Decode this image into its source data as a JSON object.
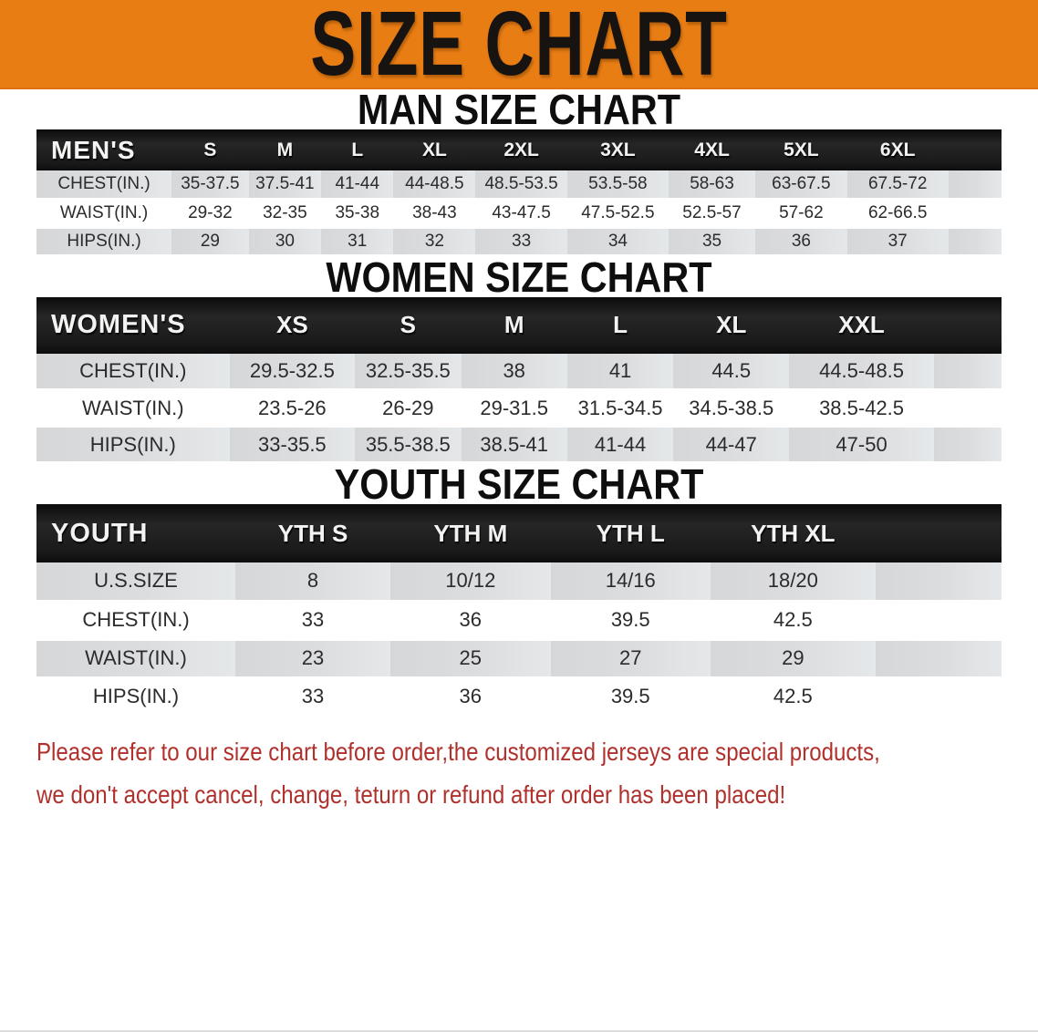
{
  "banner": {
    "title": "SIZE CHART"
  },
  "colors": {
    "banner_bg": "#e87d14",
    "header_bar": "#1a1a1a",
    "row_shade": "#dcddde",
    "disclaimer_red": "#b0302c"
  },
  "sections": [
    {
      "heading": "MAN SIZE CHART",
      "group_label": "MEN'S",
      "sizes": [
        "S",
        "M",
        "L",
        "XL",
        "2XL",
        "3XL",
        "4XL",
        "5XL",
        "6XL"
      ],
      "rows": [
        {
          "label": "CHEST(IN.)",
          "values": [
            "35-37.5",
            "37.5-41",
            "41-44",
            "44-48.5",
            "48.5-53.5",
            "53.5-58",
            "58-63",
            "63-67.5",
            "67.5-72"
          ]
        },
        {
          "label": "WAIST(IN.)",
          "values": [
            "29-32",
            "32-35",
            "35-38",
            "38-43",
            "43-47.5",
            "47.5-52.5",
            "52.5-57",
            "57-62",
            "62-66.5"
          ]
        },
        {
          "label": "HIPS(IN.)",
          "values": [
            "29",
            "30",
            "31",
            "32",
            "33",
            "34",
            "35",
            "36",
            "37"
          ]
        }
      ]
    },
    {
      "heading": "WOMEN SIZE CHART",
      "group_label": "WOMEN'S",
      "sizes": [
        "XS",
        "S",
        "M",
        "L",
        "XL",
        "XXL"
      ],
      "rows": [
        {
          "label": "CHEST(IN.)",
          "values": [
            "29.5-32.5",
            "32.5-35.5",
            "38",
            "41",
            "44.5",
            "44.5-48.5"
          ]
        },
        {
          "label": "WAIST(IN.)",
          "values": [
            "23.5-26",
            "26-29",
            "29-31.5",
            "31.5-34.5",
            "34.5-38.5",
            "38.5-42.5"
          ]
        },
        {
          "label": "HIPS(IN.)",
          "values": [
            "33-35.5",
            "35.5-38.5",
            "38.5-41",
            "41-44",
            "44-47",
            "47-50"
          ]
        }
      ]
    },
    {
      "heading": "YOUTH SIZE CHART",
      "group_label": "YOUTH",
      "sizes": [
        "YTH S",
        "YTH M",
        "YTH L",
        "YTH XL"
      ],
      "rows": [
        {
          "label": "U.S.SIZE",
          "values": [
            "8",
            "10/12",
            "14/16",
            "18/20"
          ]
        },
        {
          "label": "CHEST(IN.)",
          "values": [
            "33",
            "36",
            "39.5",
            "42.5"
          ]
        },
        {
          "label": "WAIST(IN.)",
          "values": [
            "23",
            "25",
            "27",
            "29"
          ]
        },
        {
          "label": "HIPS(IN.)",
          "values": [
            "33",
            "36",
            "39.5",
            "42.5"
          ]
        }
      ]
    }
  ],
  "disclaimer": {
    "line1": "Please refer to our size chart before order,the customized jerseys are special products,",
    "line2": "we don't accept cancel, change, teturn or refund after order has been placed!"
  }
}
